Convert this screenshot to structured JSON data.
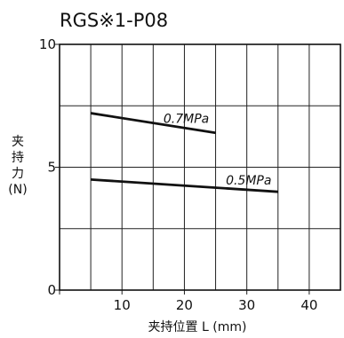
{
  "chart_data": {
    "type": "line",
    "title": "RGS※1-P08",
    "xlabel": "夹持位置 L (mm)",
    "ylabel": [
      "夹",
      "持",
      "力",
      "(N)"
    ],
    "xlim": [
      0,
      45
    ],
    "ylim": [
      0,
      10
    ],
    "x_ticks": [
      10,
      20,
      30,
      40
    ],
    "y_ticks": [
      0,
      5,
      10
    ],
    "grid": true,
    "series": [
      {
        "name": "0.7MPa",
        "x": [
          5,
          25
        ],
        "y": [
          7.2,
          6.4
        ]
      },
      {
        "name": "0.5MPa",
        "x": [
          5,
          35
        ],
        "y": [
          4.5,
          4.0
        ]
      }
    ]
  }
}
